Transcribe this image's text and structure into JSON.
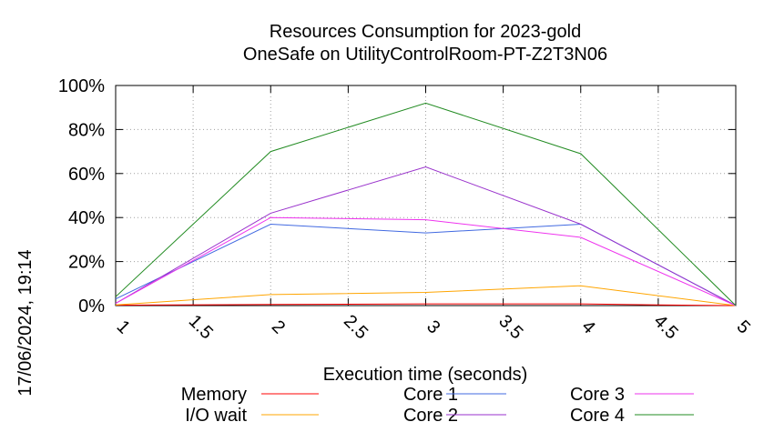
{
  "chart_data": {
    "type": "line",
    "title": [
      "Resources Consumption for 2023-gold",
      "OneSafe on UtilityControlRoom-PT-Z2T3N06"
    ],
    "xlabel": "Execution time (seconds)",
    "ylabel": "",
    "side_label": "17/06/2024, 19:14",
    "xlim": [
      1,
      5
    ],
    "ylim": [
      0,
      100
    ],
    "x_ticks": [
      "1",
      "1.5",
      "2",
      "2.5",
      "3",
      "3.5",
      "4",
      "4.5",
      "5"
    ],
    "y_ticks": [
      "0%",
      "20%",
      "40%",
      "60%",
      "80%",
      "100%"
    ],
    "grid": true,
    "legend_position": "bottom",
    "series": [
      {
        "name": "Memory",
        "color": "#ff0000",
        "x": [
          1,
          2,
          3,
          4,
          4.5,
          5
        ],
        "values": [
          0.2,
          0.5,
          0.8,
          0.8,
          0.3,
          0
        ]
      },
      {
        "name": "I/O wait",
        "color": "#ffa500",
        "x": [
          1,
          2,
          3,
          4,
          5
        ],
        "values": [
          0.3,
          5,
          6,
          9,
          0
        ]
      },
      {
        "name": "Core 1",
        "color": "#4169e1",
        "x": [
          1,
          2,
          3,
          4,
          5
        ],
        "values": [
          3,
          37,
          33,
          37,
          0
        ]
      },
      {
        "name": "Core 2",
        "color": "#9932cc",
        "x": [
          1,
          2,
          3,
          4,
          5
        ],
        "values": [
          1,
          42,
          63,
          37,
          0
        ]
      },
      {
        "name": "Core 3",
        "color": "#ee33ee",
        "x": [
          1,
          2,
          3,
          4,
          5
        ],
        "values": [
          1,
          40,
          39,
          31,
          0
        ]
      },
      {
        "name": "Core 4",
        "color": "#228b22",
        "x": [
          1,
          2,
          3,
          4,
          5
        ],
        "values": [
          4,
          70,
          92,
          69,
          0
        ]
      }
    ]
  }
}
